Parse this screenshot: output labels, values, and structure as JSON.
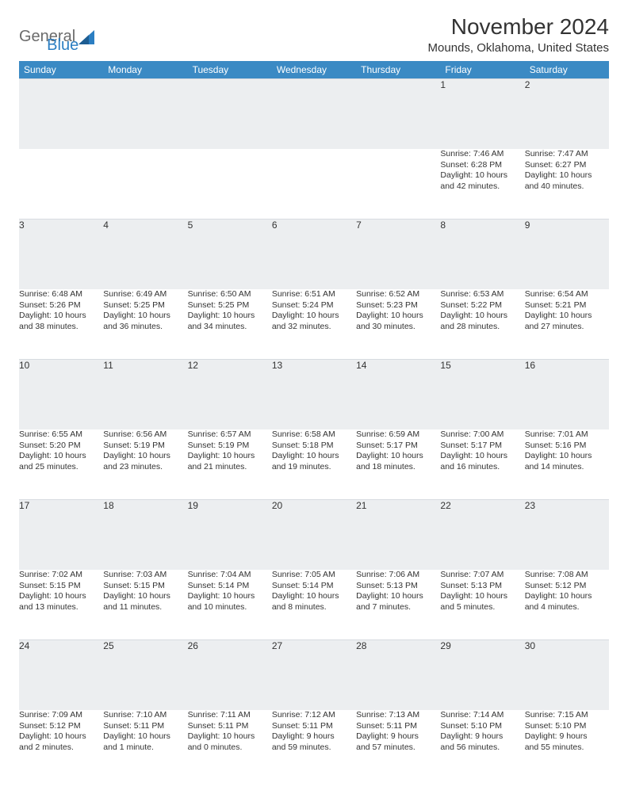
{
  "logo": {
    "word1": "General",
    "word2": "Blue"
  },
  "title": "November 2024",
  "location": "Mounds, Oklahoma, United States",
  "colors": {
    "header_bg": "#3b8ac4",
    "header_fg": "#ffffff",
    "daynum_bg": "#eceef0",
    "text": "#333333",
    "logo_gray": "#6b6b6b",
    "logo_blue": "#2b7ec2"
  },
  "weekdays": [
    "Sunday",
    "Monday",
    "Tuesday",
    "Wednesday",
    "Thursday",
    "Friday",
    "Saturday"
  ],
  "weeks": [
    [
      null,
      null,
      null,
      null,
      null,
      {
        "n": "1",
        "sr": "Sunrise: 7:46 AM",
        "ss": "Sunset: 6:28 PM",
        "d1": "Daylight: 10 hours",
        "d2": "and 42 minutes."
      },
      {
        "n": "2",
        "sr": "Sunrise: 7:47 AM",
        "ss": "Sunset: 6:27 PM",
        "d1": "Daylight: 10 hours",
        "d2": "and 40 minutes."
      }
    ],
    [
      {
        "n": "3",
        "sr": "Sunrise: 6:48 AM",
        "ss": "Sunset: 5:26 PM",
        "d1": "Daylight: 10 hours",
        "d2": "and 38 minutes."
      },
      {
        "n": "4",
        "sr": "Sunrise: 6:49 AM",
        "ss": "Sunset: 5:25 PM",
        "d1": "Daylight: 10 hours",
        "d2": "and 36 minutes."
      },
      {
        "n": "5",
        "sr": "Sunrise: 6:50 AM",
        "ss": "Sunset: 5:25 PM",
        "d1": "Daylight: 10 hours",
        "d2": "and 34 minutes."
      },
      {
        "n": "6",
        "sr": "Sunrise: 6:51 AM",
        "ss": "Sunset: 5:24 PM",
        "d1": "Daylight: 10 hours",
        "d2": "and 32 minutes."
      },
      {
        "n": "7",
        "sr": "Sunrise: 6:52 AM",
        "ss": "Sunset: 5:23 PM",
        "d1": "Daylight: 10 hours",
        "d2": "and 30 minutes."
      },
      {
        "n": "8",
        "sr": "Sunrise: 6:53 AM",
        "ss": "Sunset: 5:22 PM",
        "d1": "Daylight: 10 hours",
        "d2": "and 28 minutes."
      },
      {
        "n": "9",
        "sr": "Sunrise: 6:54 AM",
        "ss": "Sunset: 5:21 PM",
        "d1": "Daylight: 10 hours",
        "d2": "and 27 minutes."
      }
    ],
    [
      {
        "n": "10",
        "sr": "Sunrise: 6:55 AM",
        "ss": "Sunset: 5:20 PM",
        "d1": "Daylight: 10 hours",
        "d2": "and 25 minutes."
      },
      {
        "n": "11",
        "sr": "Sunrise: 6:56 AM",
        "ss": "Sunset: 5:19 PM",
        "d1": "Daylight: 10 hours",
        "d2": "and 23 minutes."
      },
      {
        "n": "12",
        "sr": "Sunrise: 6:57 AM",
        "ss": "Sunset: 5:19 PM",
        "d1": "Daylight: 10 hours",
        "d2": "and 21 minutes."
      },
      {
        "n": "13",
        "sr": "Sunrise: 6:58 AM",
        "ss": "Sunset: 5:18 PM",
        "d1": "Daylight: 10 hours",
        "d2": "and 19 minutes."
      },
      {
        "n": "14",
        "sr": "Sunrise: 6:59 AM",
        "ss": "Sunset: 5:17 PM",
        "d1": "Daylight: 10 hours",
        "d2": "and 18 minutes."
      },
      {
        "n": "15",
        "sr": "Sunrise: 7:00 AM",
        "ss": "Sunset: 5:17 PM",
        "d1": "Daylight: 10 hours",
        "d2": "and 16 minutes."
      },
      {
        "n": "16",
        "sr": "Sunrise: 7:01 AM",
        "ss": "Sunset: 5:16 PM",
        "d1": "Daylight: 10 hours",
        "d2": "and 14 minutes."
      }
    ],
    [
      {
        "n": "17",
        "sr": "Sunrise: 7:02 AM",
        "ss": "Sunset: 5:15 PM",
        "d1": "Daylight: 10 hours",
        "d2": "and 13 minutes."
      },
      {
        "n": "18",
        "sr": "Sunrise: 7:03 AM",
        "ss": "Sunset: 5:15 PM",
        "d1": "Daylight: 10 hours",
        "d2": "and 11 minutes."
      },
      {
        "n": "19",
        "sr": "Sunrise: 7:04 AM",
        "ss": "Sunset: 5:14 PM",
        "d1": "Daylight: 10 hours",
        "d2": "and 10 minutes."
      },
      {
        "n": "20",
        "sr": "Sunrise: 7:05 AM",
        "ss": "Sunset: 5:14 PM",
        "d1": "Daylight: 10 hours",
        "d2": "and 8 minutes."
      },
      {
        "n": "21",
        "sr": "Sunrise: 7:06 AM",
        "ss": "Sunset: 5:13 PM",
        "d1": "Daylight: 10 hours",
        "d2": "and 7 minutes."
      },
      {
        "n": "22",
        "sr": "Sunrise: 7:07 AM",
        "ss": "Sunset: 5:13 PM",
        "d1": "Daylight: 10 hours",
        "d2": "and 5 minutes."
      },
      {
        "n": "23",
        "sr": "Sunrise: 7:08 AM",
        "ss": "Sunset: 5:12 PM",
        "d1": "Daylight: 10 hours",
        "d2": "and 4 minutes."
      }
    ],
    [
      {
        "n": "24",
        "sr": "Sunrise: 7:09 AM",
        "ss": "Sunset: 5:12 PM",
        "d1": "Daylight: 10 hours",
        "d2": "and 2 minutes."
      },
      {
        "n": "25",
        "sr": "Sunrise: 7:10 AM",
        "ss": "Sunset: 5:11 PM",
        "d1": "Daylight: 10 hours",
        "d2": "and 1 minute."
      },
      {
        "n": "26",
        "sr": "Sunrise: 7:11 AM",
        "ss": "Sunset: 5:11 PM",
        "d1": "Daylight: 10 hours",
        "d2": "and 0 minutes."
      },
      {
        "n": "27",
        "sr": "Sunrise: 7:12 AM",
        "ss": "Sunset: 5:11 PM",
        "d1": "Daylight: 9 hours",
        "d2": "and 59 minutes."
      },
      {
        "n": "28",
        "sr": "Sunrise: 7:13 AM",
        "ss": "Sunset: 5:11 PM",
        "d1": "Daylight: 9 hours",
        "d2": "and 57 minutes."
      },
      {
        "n": "29",
        "sr": "Sunrise: 7:14 AM",
        "ss": "Sunset: 5:10 PM",
        "d1": "Daylight: 9 hours",
        "d2": "and 56 minutes."
      },
      {
        "n": "30",
        "sr": "Sunrise: 7:15 AM",
        "ss": "Sunset: 5:10 PM",
        "d1": "Daylight: 9 hours",
        "d2": "and 55 minutes."
      }
    ]
  ]
}
